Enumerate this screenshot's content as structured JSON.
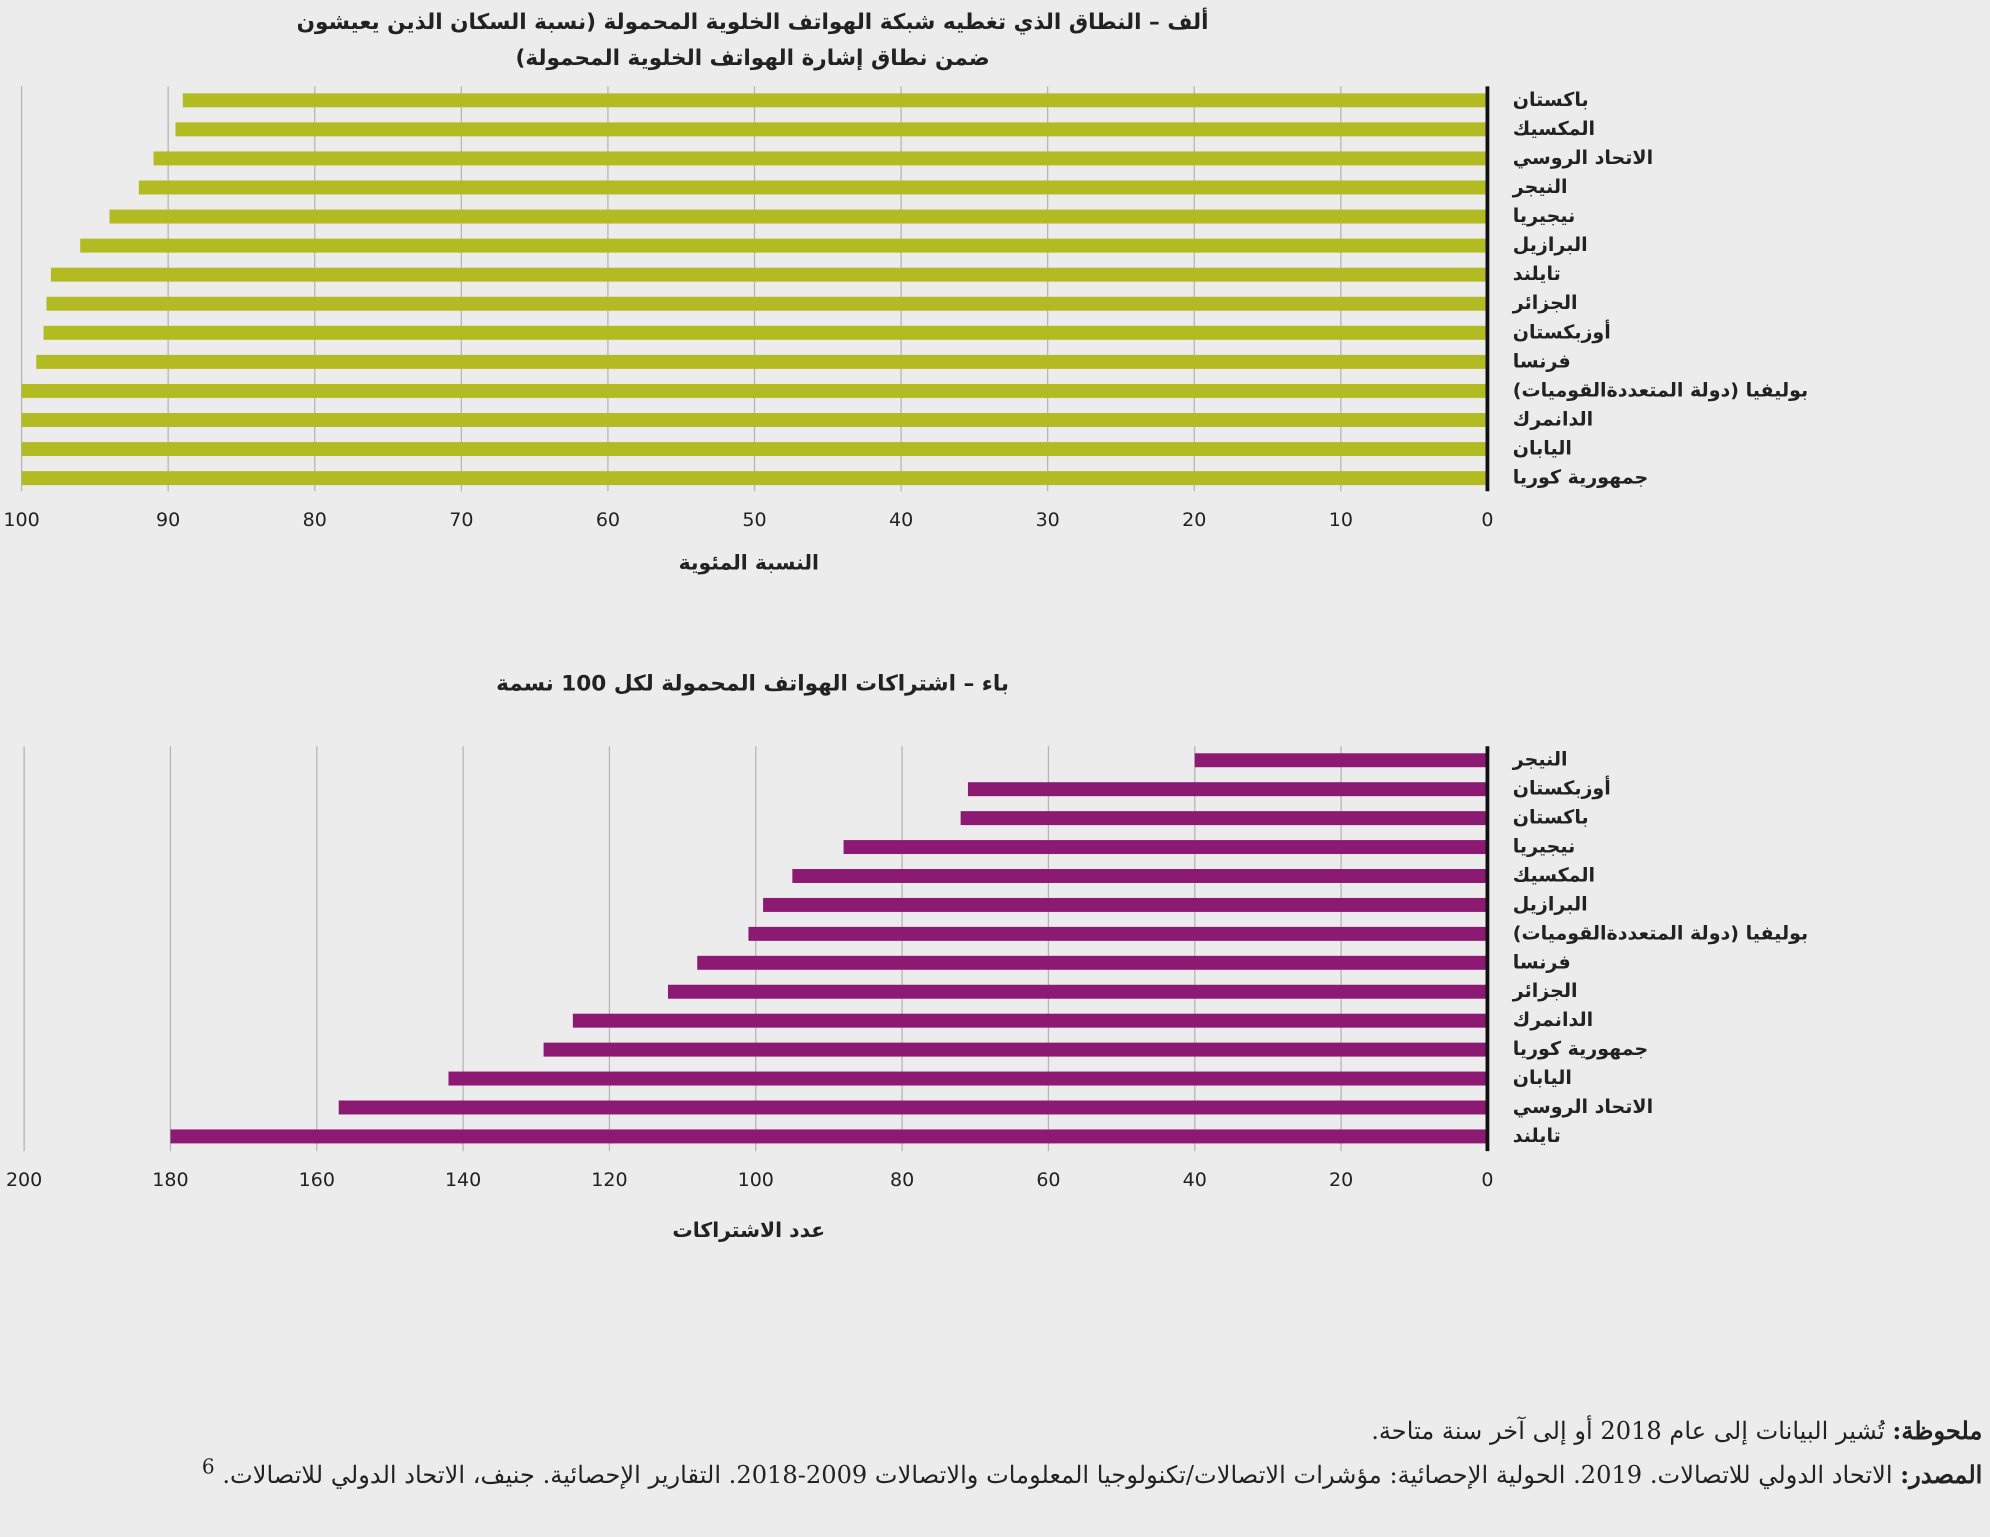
{
  "chart_data": [
    {
      "type": "bar",
      "orientation": "horizontal",
      "title": "ألف – النطاق الذي تغطيه شبكة الهواتف الخلوية المحمولة (نسبة السكان الذين يعيشون ضمن نطاق إشارة الهواتف الخلوية المحمولة)",
      "x_label": "النسبة المئوية",
      "categories": [
        "باكستان",
        "المكسيك",
        "الاتحاد الروسي",
        "النيجر",
        "نيجيريا",
        "البرازيل",
        "تايلند",
        "الجزائر",
        "أوزبكستان",
        "فرنسا",
        "بوليفيا (دولة المتعددةالقوميات)",
        "الدانمرك",
        "اليابان",
        "جمهورية كوريا"
      ],
      "values": [
        89,
        89.5,
        91,
        92,
        94,
        96,
        98,
        98.3,
        98.5,
        99,
        100,
        100,
        100,
        100
      ],
      "color": "#b3bb22",
      "xlim": [
        100,
        0
      ],
      "xticks": [
        100,
        90,
        80,
        70,
        60,
        50,
        40,
        30,
        20,
        10,
        0
      ],
      "grid": true
    },
    {
      "type": "bar",
      "orientation": "horizontal",
      "title": "باء – اشتراكات الهواتف المحمولة لكل 100 نسمة",
      "x_label": "عدد الاشتراكات",
      "categories": [
        "النيجر",
        "أوزبكستان",
        "باكستان",
        "نيجيريا",
        "المكسيك",
        "البرازيل",
        "بوليفيا (دولة المتعددةالقوميات)",
        "فرنسا",
        "الجزائر",
        "الدانمرك",
        "جمهورية كوريا",
        "اليابان",
        "الاتحاد الروسي",
        "تايلند"
      ],
      "values": [
        40,
        71,
        72,
        88,
        95,
        99,
        101,
        108,
        112,
        125,
        129,
        142,
        157,
        180
      ],
      "color": "#8c1a72",
      "xlim": [
        200,
        0
      ],
      "xticks": [
        200,
        180,
        160,
        140,
        120,
        100,
        80,
        60,
        40,
        20,
        0
      ],
      "grid": true
    }
  ],
  "note": {
    "label": "ملحوظة:",
    "text": "تُشير البيانات إلى عام 2018 أو إلى آخر سنة متاحة."
  },
  "source": {
    "label": "المصدر:",
    "text": "الاتحاد الدولي للاتصالات. 2019. الحولية الإحصائية: مؤشرات الاتصالات/تكنولوجيا المعلومات والاتصالات 2009-2018. التقارير الإحصائية. جنيف، الاتحاد الدولي للاتصالات.",
    "ref": "6"
  }
}
